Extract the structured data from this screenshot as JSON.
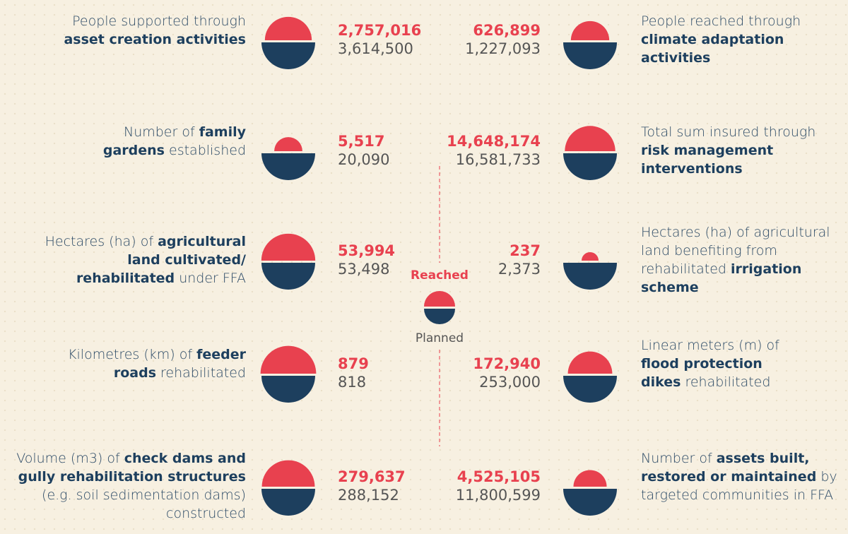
{
  "chart_data": {
    "type": "semicircle",
    "legend": {
      "reached": "Reached",
      "planned": "Planned"
    },
    "colors": {
      "reached": "#e8414f",
      "planned": "#1d3f5e"
    },
    "items": [
      {
        "label": [
          {
            "text": "People supported through "
          },
          {
            "text": "asset creation activities",
            "bold": true
          }
        ],
        "reached": 2757016,
        "planned": 3614500,
        "value_labels": [
          "2,757,016",
          "3,614,500"
        ]
      },
      {
        "label": [
          {
            "text": "Number of "
          },
          {
            "text": "family gardens",
            "bold": true
          },
          {
            "text": " established"
          }
        ],
        "reached": 5517,
        "planned": 20090,
        "value_labels": [
          "5,517",
          "20,090"
        ]
      },
      {
        "label": [
          {
            "text": "Hectares (ha) of "
          },
          {
            "text": "agricultural land cultivated/ rehabilitated",
            "bold": true
          },
          {
            "text": " under FFA"
          }
        ],
        "reached": 53994,
        "planned": 53498,
        "value_labels": [
          "53,994",
          "53,498"
        ]
      },
      {
        "label": [
          {
            "text": "Kilometres (km) of "
          },
          {
            "text": "feeder roads",
            "bold": true
          },
          {
            "text": " rehabilitated"
          }
        ],
        "reached": 879,
        "planned": 818,
        "value_labels": [
          "879",
          "818"
        ]
      },
      {
        "label": [
          {
            "text": "Volume (m3) of "
          },
          {
            "text": "check dams and gully rehabilitation structures",
            "bold": true
          },
          {
            "text": " (e.g. soil sedimentation dams) constructed"
          }
        ],
        "reached": 279637,
        "planned": 288152,
        "value_labels": [
          "279,637",
          "288,152"
        ]
      },
      {
        "label": [
          {
            "text": "People reached through "
          },
          {
            "text": "climate adaptation activities",
            "bold": true
          }
        ],
        "reached": 626899,
        "planned": 1227093,
        "value_labels": [
          "626,899",
          "1,227,093"
        ]
      },
      {
        "label": [
          {
            "text": "Total sum insured through "
          },
          {
            "text": "risk management interventions",
            "bold": true
          }
        ],
        "reached": 14648174,
        "planned": 16581733,
        "value_labels": [
          "14,648,174",
          "16,581,733"
        ]
      },
      {
        "label": [
          {
            "text": "Hectares (ha) of agricultural land benefiting from rehabilitated "
          },
          {
            "text": "irrigation scheme",
            "bold": true
          }
        ],
        "reached": 237,
        "planned": 2373,
        "value_labels": [
          "237",
          "2,373"
        ]
      },
      {
        "label": [
          {
            "text": "Linear meters (m) of "
          },
          {
            "text": "flood protection dikes",
            "bold": true
          },
          {
            "text": " rehabilitated"
          }
        ],
        "reached": 172940,
        "planned": 253000,
        "value_labels": [
          "172,940",
          "253,000"
        ]
      },
      {
        "label": [
          {
            "text": "Number of "
          },
          {
            "text": "assets built, restored or maintained",
            "bold": true
          },
          {
            "text": " by targeted communities in FFA"
          }
        ],
        "reached": 4525105,
        "planned": 11800599,
        "value_labels": [
          "4,525,105",
          "11,800,599"
        ]
      }
    ]
  }
}
